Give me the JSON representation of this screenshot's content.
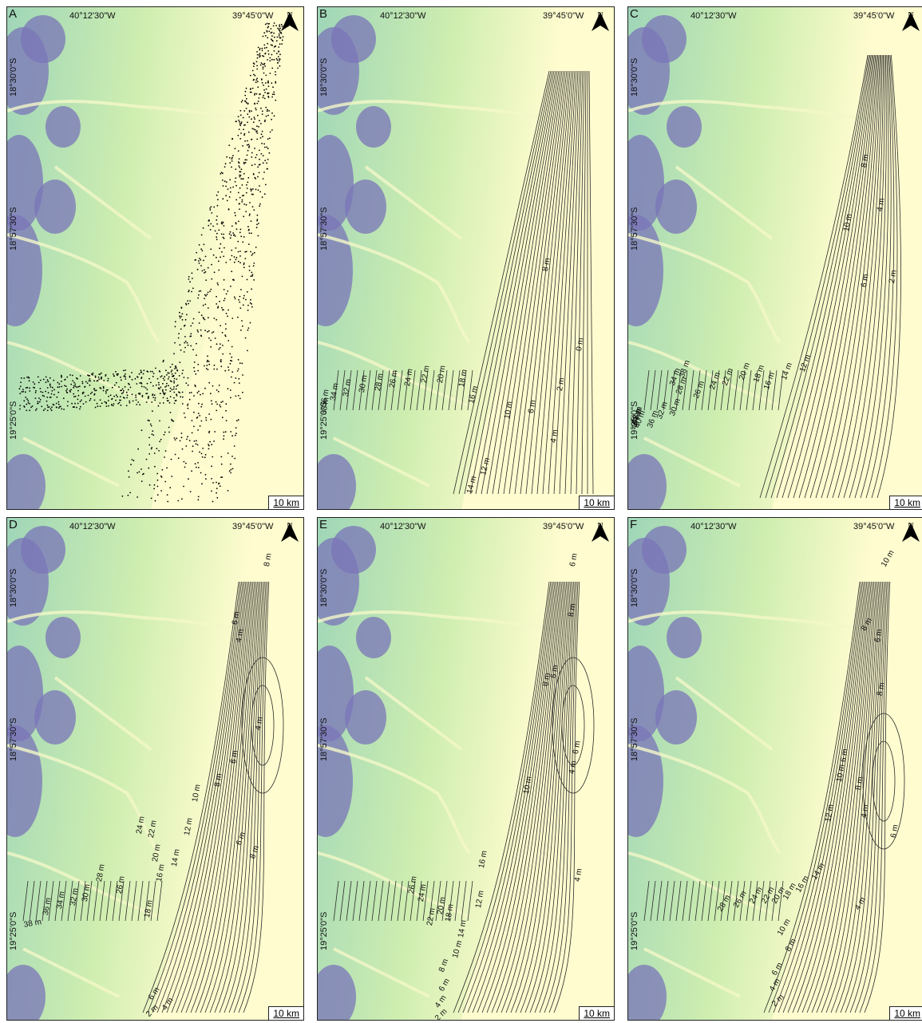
{
  "panels": [
    {
      "id": "A",
      "letter": "A",
      "lon_labels": [
        "40°12'30\"W",
        "39°45'0\"W"
      ],
      "lat_labels": [
        "18°30'0\"S",
        "18°57'30\"S",
        "19°25'0\"S"
      ],
      "north": "N",
      "scale": "10 km",
      "contour_labels": []
    },
    {
      "id": "B",
      "letter": "B",
      "lon_labels": [
        "40°12'30\"W",
        "39°45'0\"W"
      ],
      "lat_labels": [
        "18°30'0\"S",
        "18°57'30\"S",
        "19°25'0\"S"
      ],
      "north": "N",
      "scale": "10 km",
      "contour_labels": [
        "8 m",
        "0 m",
        "2 m",
        "6 m",
        "4 m",
        "10 m",
        "12 m",
        "14 m",
        "16 m",
        "18 m",
        "20 m",
        "22 m",
        "24 m",
        "26 m",
        "28 m",
        "30 m",
        "32 m",
        "34 m",
        "36 m",
        "38 m"
      ]
    },
    {
      "id": "C",
      "letter": "C",
      "lon_labels": [
        "40°12'30\"W",
        "39°45'0\"W"
      ],
      "lat_labels": [
        "18°30'0\"S",
        "18°57'30\"S",
        "19°25'0\"S"
      ],
      "north": "N",
      "scale": "10 km",
      "contour_labels": [
        "8 m",
        "4 m",
        "10 m",
        "6 m",
        "2 m",
        "12 m",
        "14 m",
        "16 m",
        "18 m",
        "20 m",
        "22 m",
        "24 m",
        "26 m",
        "28 m",
        "34 m",
        "38 m",
        "30 m",
        "32 m",
        "36 m",
        "40 m",
        "42 m",
        "44 m",
        "46 m",
        "48 m"
      ]
    },
    {
      "id": "D",
      "letter": "D",
      "lon_labels": [
        "40°12'30\"W",
        "39°45'0\"W"
      ],
      "lat_labels": [
        "18°30'0\"S",
        "18°57'30\"S",
        "19°25'0\"S"
      ],
      "north": "N",
      "scale": "10 km",
      "contour_labels": [
        "8 m",
        "6 m",
        "4 m",
        "4 m",
        "6 m",
        "8 m",
        "10 m",
        "12 m",
        "14 m",
        "16 m",
        "18 m",
        "20 m",
        "22 m",
        "24 m",
        "26 m",
        "28 m",
        "30 m",
        "32 m",
        "34 m",
        "36 m",
        "38 m",
        "6 m",
        "8 m",
        "6 m",
        "4 m",
        "2 m"
      ]
    },
    {
      "id": "E",
      "letter": "E",
      "lon_labels": [
        "40°12'30\"W",
        "39°45'0\"W"
      ],
      "lat_labels": [
        "18°30'0\"S",
        "18°57'30\"S",
        "19°25'0\"S"
      ],
      "north": "N",
      "scale": "10 km",
      "contour_labels": [
        "6 m",
        "8 m",
        "8 m",
        "6 m",
        "10 m",
        "6 m",
        "4 m",
        "4 m",
        "16 m",
        "12 m",
        "14 m",
        "10 m",
        "8 m",
        "6 m",
        "4 m",
        "2 m",
        "18 m",
        "20 m",
        "22 m",
        "24 m",
        "26 m"
      ]
    },
    {
      "id": "F",
      "letter": "F",
      "lon_labels": [
        "40°12'30\"W",
        "39°45'0\"W"
      ],
      "lat_labels": [
        "18°30'0\"S",
        "18°57'30\"S",
        "19°25'0\"S"
      ],
      "north": "N",
      "scale": "10 km",
      "contour_labels": [
        "10 m",
        "8 m",
        "6 m",
        "8 m",
        "6 m",
        "8 m",
        "4 m",
        "10 m",
        "12 m",
        "6 m",
        "14 m",
        "16 m",
        "18 m",
        "20 m",
        "22 m",
        "24 m",
        "26 m",
        "28 m",
        "10 m",
        "8 m",
        "6 m",
        "4 m",
        "2 m",
        "4 m"
      ]
    }
  ],
  "colors": {
    "land_low": "#fffccf",
    "land_mid": "#cfeeb0",
    "land_high": "#9fd6b8",
    "mountain": "#7a74b8",
    "river": "#f4f8c8",
    "contour": "#2a2a2a",
    "points": "#000000"
  }
}
